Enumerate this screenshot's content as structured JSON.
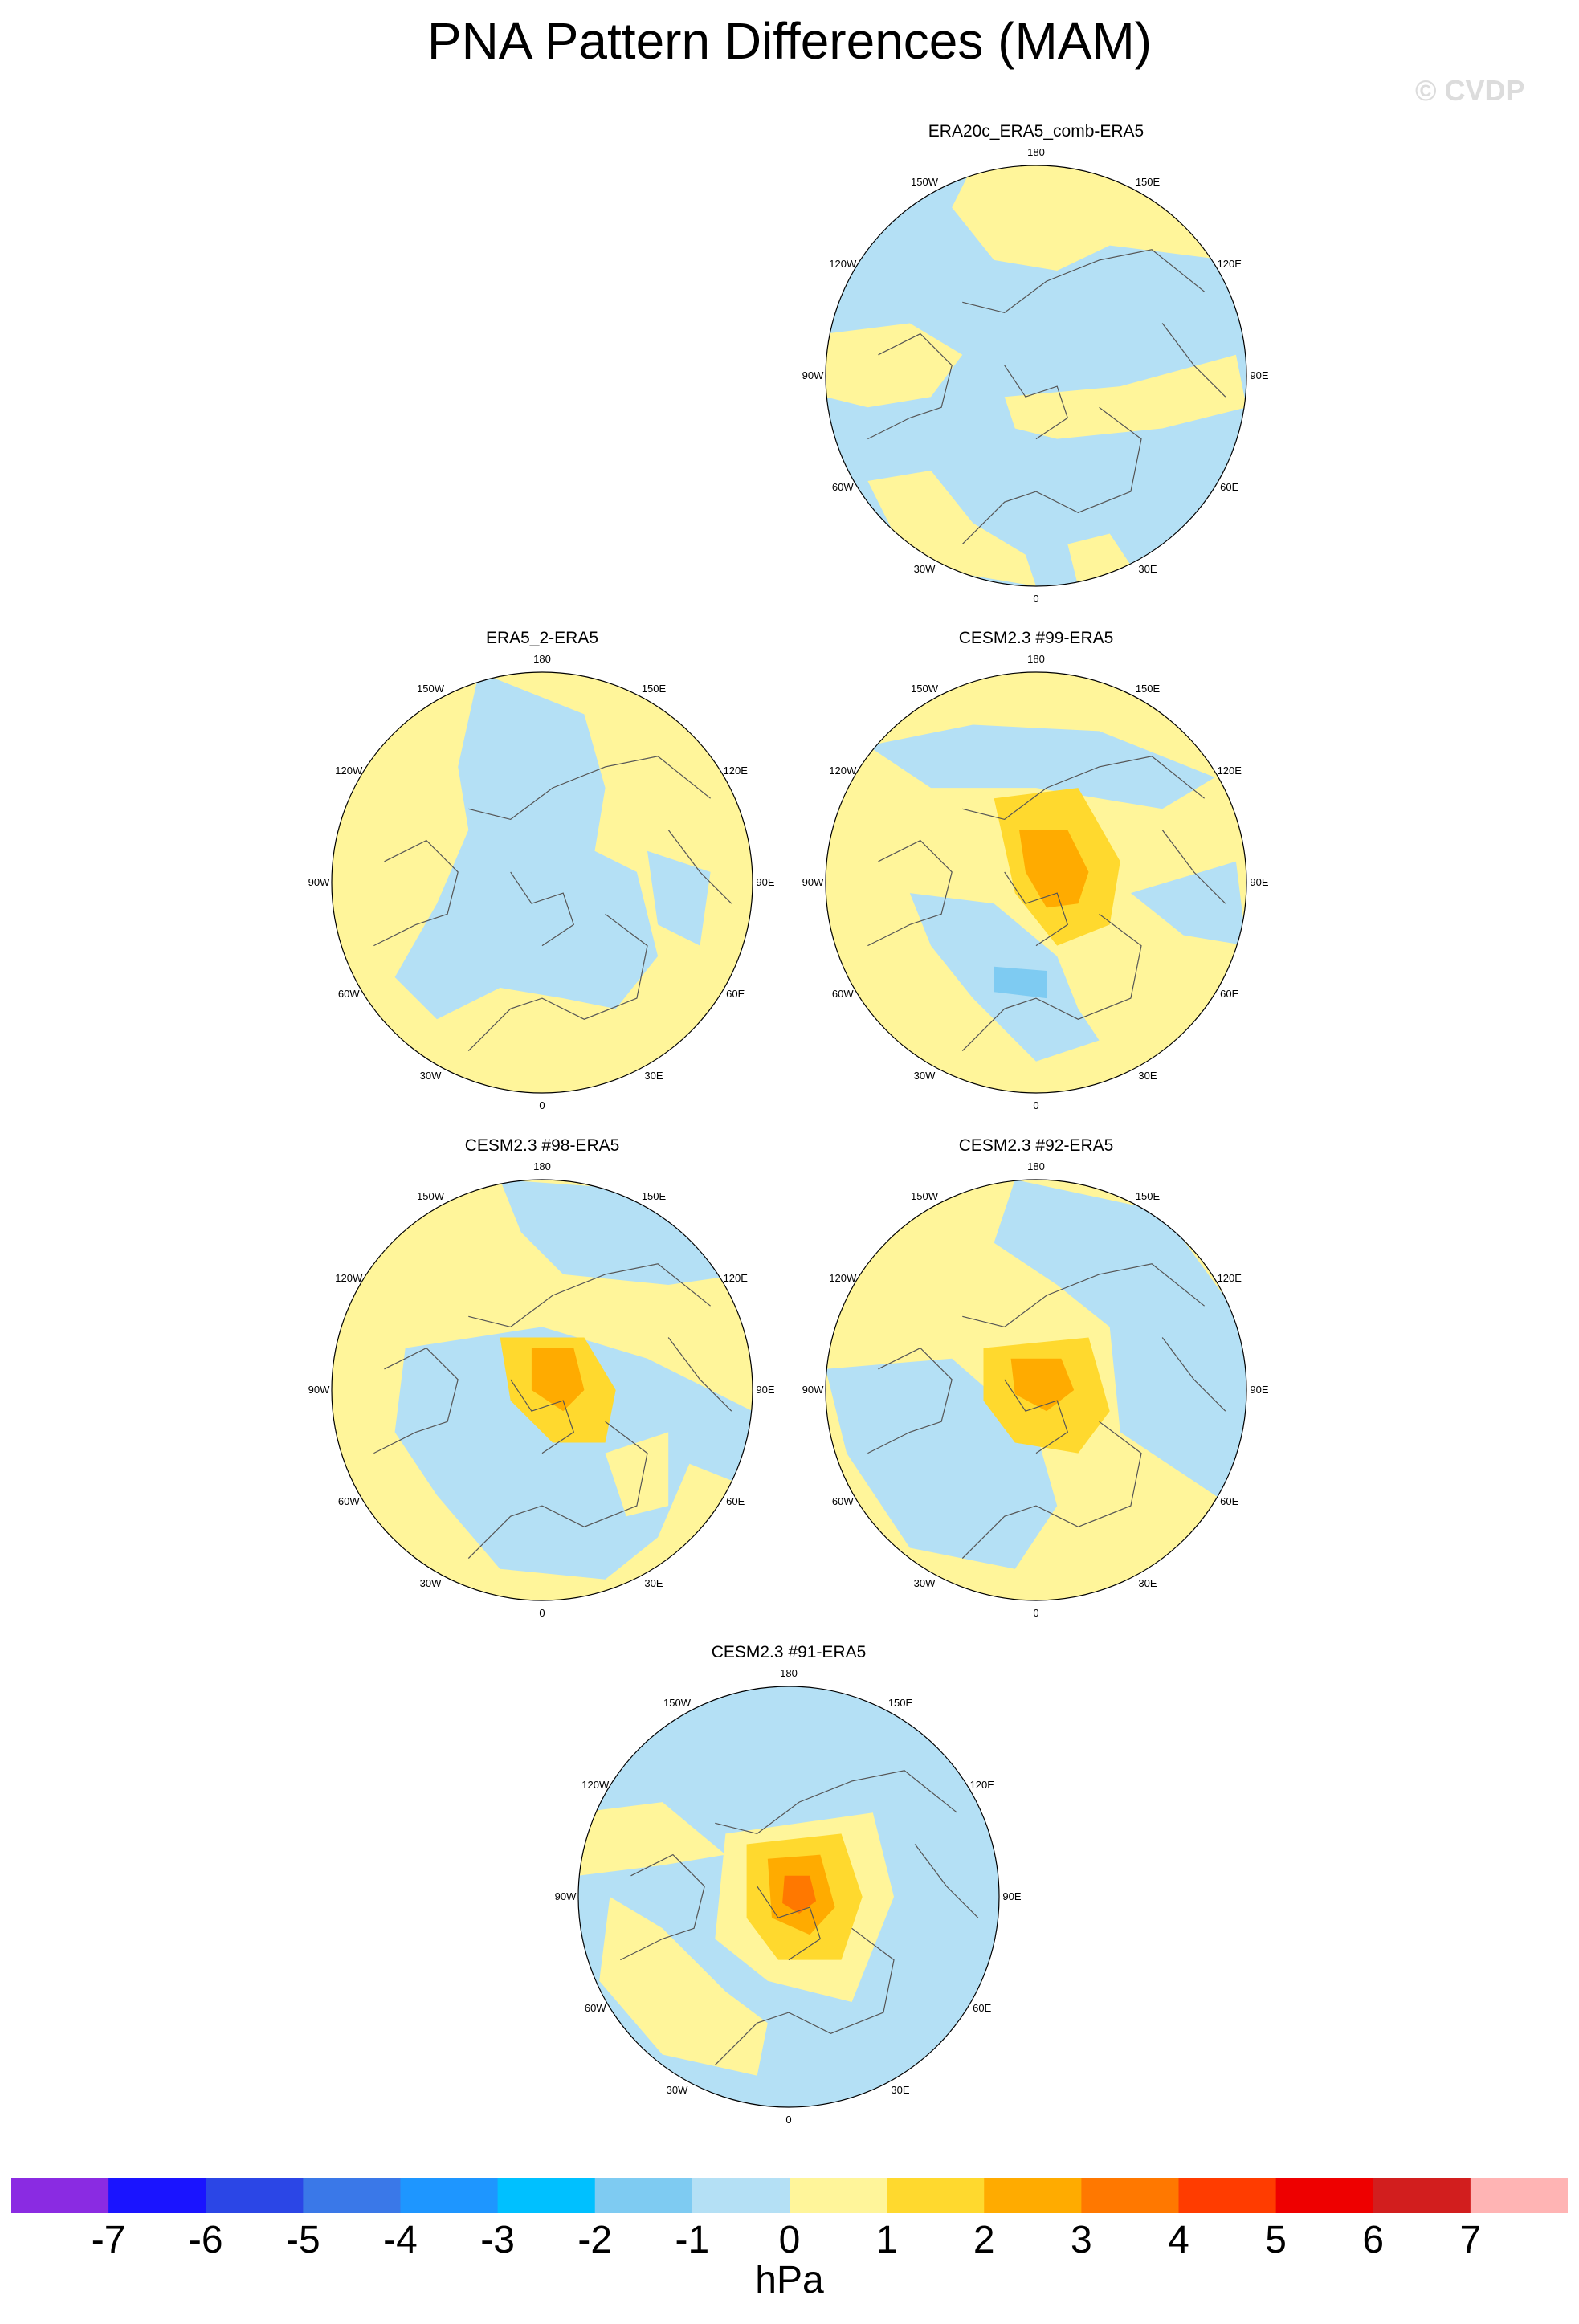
{
  "chart_data": {
    "type": "polar-contour-map-panel",
    "title": "PNA Pattern Differences (MAM)",
    "credit": "© CVDP",
    "projection": "polar stereographic, Northern Hemisphere",
    "longitude_labels": [
      "180",
      "150E",
      "120E",
      "90E",
      "60E",
      "30E",
      "0",
      "30W",
      "60W",
      "90W",
      "120W",
      "150W"
    ],
    "units": "hPa",
    "colorbar": {
      "levels": [
        "-7",
        "-6",
        "-5",
        "-4",
        "-3",
        "-2",
        "-1",
        "0",
        "1",
        "2",
        "3",
        "4",
        "5",
        "6",
        "7"
      ],
      "colors": [
        "#8a2be2",
        "#1a14ff",
        "#2b46e6",
        "#3a78e8",
        "#1e96ff",
        "#00c0ff",
        "#7ecbf2",
        "#b4e0f5",
        "#fff59a",
        "#ffd92e",
        "#ffab00",
        "#ff7800",
        "#ff3c00",
        "#ee0000",
        "#d21e1e",
        "#ffb4b4"
      ]
    },
    "panels": [
      {
        "name": "ERA20c_ERA5_comb-ERA5",
        "max_anomaly": "0 to 1",
        "min_anomaly": "-1 to 0"
      },
      {
        "name": "ERA5_2-ERA5",
        "max_anomaly": "0 to 1",
        "min_anomaly": "-1 to 0"
      },
      {
        "name": "CESM2.3 #99-ERA5",
        "max_anomaly": "2 to 3",
        "min_anomaly": "-2 to -1"
      },
      {
        "name": "CESM2.3 #98-ERA5",
        "max_anomaly": "2 to 3",
        "min_anomaly": "-1 to 0"
      },
      {
        "name": "CESM2.3 #92-ERA5",
        "max_anomaly": "2 to 3",
        "min_anomaly": "-1 to 0"
      },
      {
        "name": "CESM2.3 #91-ERA5",
        "max_anomaly": "3 to 4",
        "min_anomaly": "-1 to 0"
      }
    ]
  }
}
